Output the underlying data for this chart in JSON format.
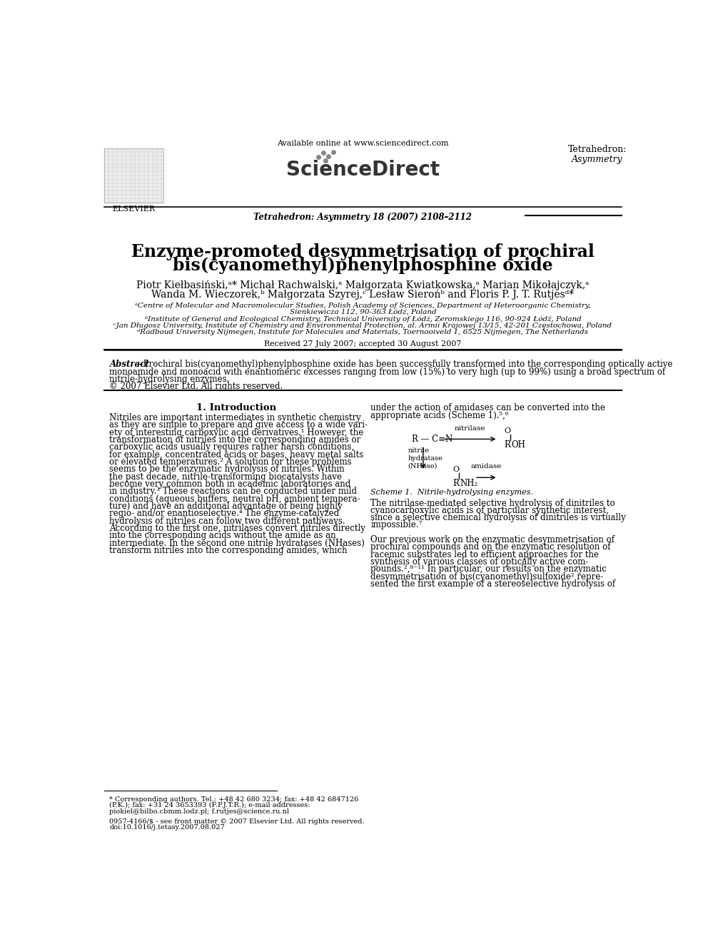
{
  "page_bg": "#ffffff",
  "title_line1": "Enzyme-promoted desymmetrisation of prochiral",
  "title_line2": "bis(cyanomethyl)phenylphosphine oxide",
  "authors_line1": "Piotr Kiełbasiński,ᵃ* Michał Rachwalski,ᵃ Małgorzata Kwiatkowska,ᵃ Marian Mikołajczyk,ᵃ",
  "authors_line2": "Wanda M. Wieczorek,ᵇ Małgorzata Szyrej,ᶜ Lesław Sierońᵇ and Floris P. J. T. Rutjesᵈ*",
  "affil_a": "ᵃCentre of Molecular and Macromolecular Studies, Polish Academy of Sciences, Department of Heteroorganic Chemistry,",
  "affil_a2": "Sienkiewicza 112, 90-363 Łódź, Poland",
  "affil_b": "ᵇInstitute of General and Ecological Chemistry, Technical University of Łódź, Zeromskiego 116, 90-924 Łódź, Poland",
  "affil_c": "ᶜJan Długosz University, Institute of Chemistry and Environmental Protection, al. Armii Krajowej 13/15, 42-201 Częstochowa, Poland",
  "affil_d": "ᵈRadboud University Nijmegen, Institute for Molecules and Materials, Toernooiveld 1, 6525 Nijmegen, The Netherlands",
  "received": "Received 27 July 2007; accepted 30 August 2007",
  "journal_header": "Tetrahedron: Asymmetry 18 (2007) 2108–2112",
  "journal_name": "Tetrahedron:",
  "journal_sub": "Asymmetry",
  "available_online": "Available online at www.sciencedirect.com",
  "elsevier_text": "ELSEVIER",
  "abs_bold": "Abstract",
  "abs_line1": "—Prochiral bis(cyanomethyl)phenylphosphine oxide has been successfully transformed into the corresponding optically active",
  "abs_line2": "monoamide and monoacid with enantiomeric excesses ranging from low (15%) to very high (up to 99%) using a broad spectrum of",
  "abs_line3": "nitrile-hydrolysing enzymes.",
  "copyright": "© 2007 Elsevier Ltd. All rights reserved.",
  "intro_heading": "1. Introduction",
  "scheme_caption": "Scheme 1.  Nitrile-hydrolysing enzymes.",
  "footnote_asterisk1": "* Corresponding authors. Tel.: +48 42 680 3234; fax: +48 42 6847126",
  "footnote_asterisk2": "(P.K.); fax: +31 24 3653393 (F.P.J.T.R.); e-mail addresses:",
  "footnote_asterisk3": "piokiel@bilbo.cbmm.lodz.pl; f.rutjes@science.ru.nl",
  "footnote_issn": "0957-4166/$ - see front matter © 2007 Elsevier Ltd. All rights reserved.",
  "footnote_doi": "doi:10.1016/j.tetasy.2007.08.027"
}
